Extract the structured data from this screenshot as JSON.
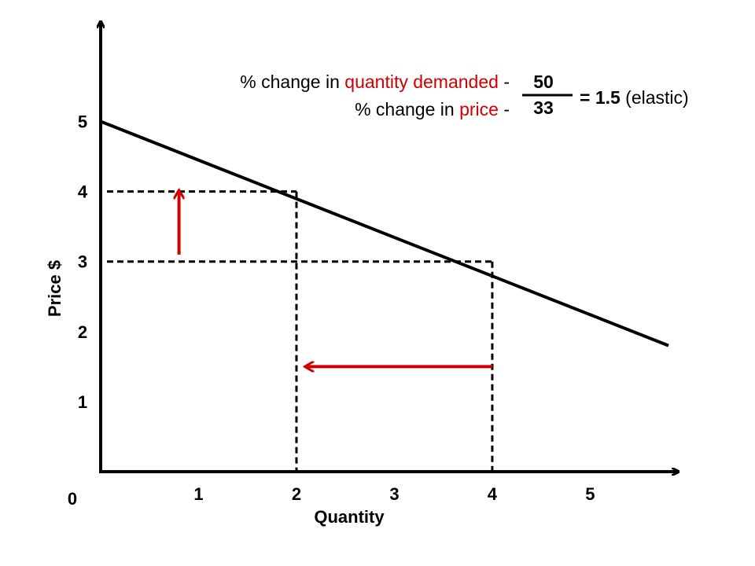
{
  "chart_data": {
    "type": "line",
    "title": "",
    "xlabel": "Quantity",
    "ylabel": "Price $",
    "origin_label": "0",
    "x_ticks": [
      "1",
      "2",
      "3",
      "4",
      "5"
    ],
    "y_ticks": [
      "1",
      "2",
      "3",
      "4",
      "5"
    ],
    "xlim": [
      0,
      5.8
    ],
    "ylim": [
      0,
      5.5
    ],
    "grid": false,
    "series": [
      {
        "x": [
          0,
          5.8
        ],
        "y": [
          5,
          1.8
        ],
        "color": "#000000"
      }
    ],
    "guides": [
      {
        "x": 2,
        "y": 4
      },
      {
        "x": 4,
        "y": 3
      }
    ],
    "arrows": [
      {
        "from": [
          0.8,
          3.1
        ],
        "to": [
          0.8,
          4.0
        ],
        "color": "#d00000"
      },
      {
        "from": [
          4.0,
          1.5
        ],
        "to": [
          2.1,
          1.5
        ],
        "color": "#d00000"
      }
    ]
  },
  "formula": {
    "numerator_label_1": "% change in ",
    "numerator_label_2": "quantity demanded",
    "numerator_label_3": " -",
    "denominator_label_1": "% change in ",
    "denominator_label_2": "price",
    "denominator_label_3": " -",
    "numerator_value": "50",
    "denominator_value": "33",
    "result_prefix": "= 1.5",
    "result_suffix": " (elastic)",
    "highlight_color": "#d00000"
  }
}
